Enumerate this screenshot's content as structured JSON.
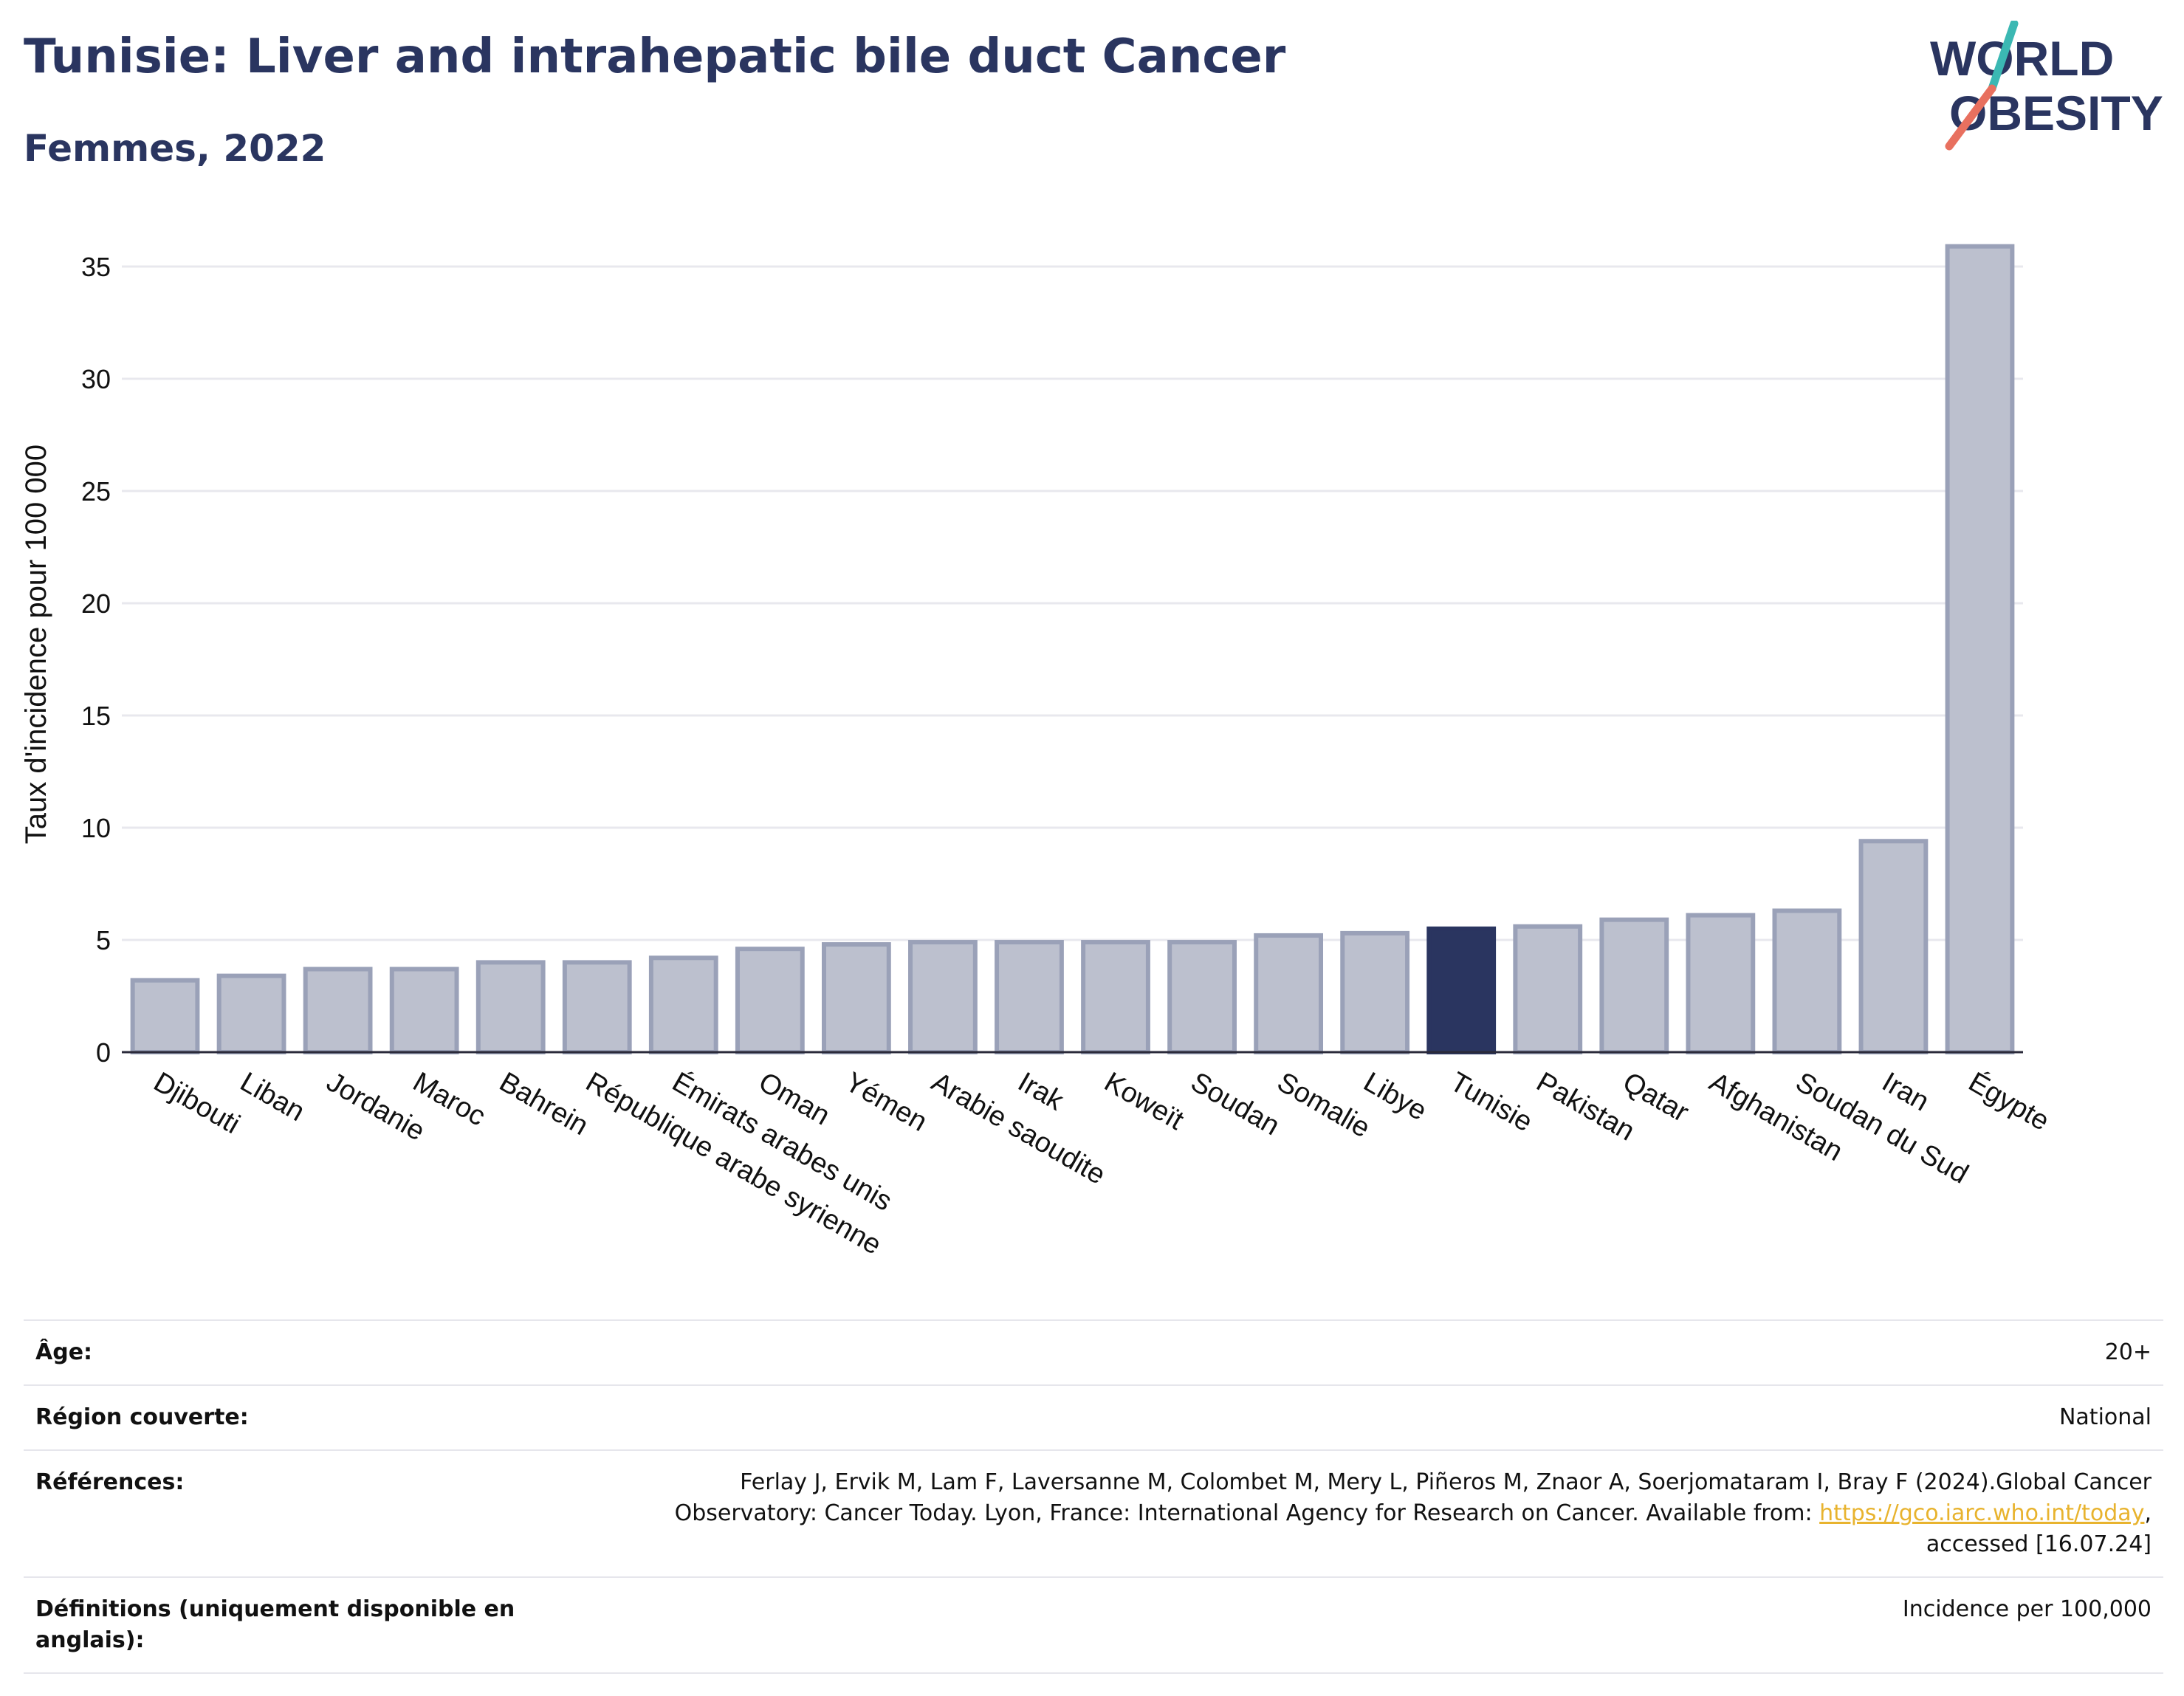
{
  "header": {
    "title": "Tunisie: Liver and intrahepatic bile duct Cancer",
    "subtitle": "Femmes, 2022",
    "logo_line1": "WORLD",
    "logo_line2": "OBESITY"
  },
  "colors": {
    "bar": "#bcc0ce",
    "bar_stroke": "#9aa1b8",
    "highlight": "#2a3560",
    "grid": "#e8e8ee",
    "axis": "#2a2a3a",
    "logo_teal": "#3bb8b3",
    "logo_coral": "#e8705f"
  },
  "chart_data": {
    "type": "bar",
    "ylabel": "Taux d'incidence pour 100 000",
    "ylim": [
      0,
      37
    ],
    "yticks": [
      0,
      5,
      10,
      15,
      20,
      25,
      30,
      35
    ],
    "grid": true,
    "highlight": "Tunisie",
    "categories": [
      "Djibouti",
      "Liban",
      "Jordanie",
      "Maroc",
      "Bahrein",
      "République arabe syrienne",
      "Émirats arabes unis",
      "Oman",
      "Yémen",
      "Arabie saoudite",
      "Irak",
      "Koweït",
      "Soudan",
      "Somalie",
      "Libye",
      "Tunisie",
      "Pakistan",
      "Qatar",
      "Afghanistan",
      "Soudan du Sud",
      "Iran",
      "Égypte"
    ],
    "values": [
      3.2,
      3.4,
      3.7,
      3.7,
      4.0,
      4.0,
      4.2,
      4.6,
      4.8,
      4.9,
      4.9,
      4.9,
      4.9,
      5.2,
      5.3,
      5.5,
      5.6,
      5.9,
      6.1,
      6.3,
      9.4,
      35.9
    ]
  },
  "info": {
    "age_label": "Âge:",
    "age_value": "20+",
    "region_label": "Région couverte:",
    "region_value": "National",
    "refs_label": "Références:",
    "refs_text1": "Ferlay J, Ervik M, Lam F, Laversanne M, Colombet M, Mery L, Piñeros M, Znaor A, Soerjomataram I, Bray F (2024).Global Cancer Observatory: Cancer Today. Lyon, France: International Agency for Research on Cancer. Available from: ",
    "refs_link": "https://gco.iarc.who.int/today",
    "refs_text2": ", accessed [16.07.24]",
    "defs_label": "Définitions (uniquement disponible en anglais):",
    "defs_value": "Incidence per 100,000"
  }
}
